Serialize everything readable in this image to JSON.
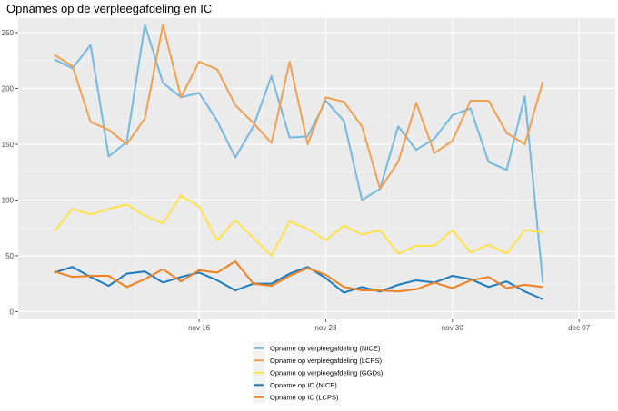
{
  "chart_data": {
    "type": "line",
    "title": "Opnames op de verpleegafdeling en IC",
    "xlabel": "",
    "ylabel": "",
    "x_start": "2020-11-08",
    "x_ticks": [
      {
        "label": "nov 16",
        "date": "2020-11-16"
      },
      {
        "label": "nov 23",
        "date": "2020-11-23"
      },
      {
        "label": "nov 30",
        "date": "2020-11-30"
      },
      {
        "label": "dec 07",
        "date": "2020-12-07"
      }
    ],
    "xlim": [
      "2020-11-06",
      "2020-12-09"
    ],
    "y_ticks": [
      0,
      50,
      100,
      150,
      200,
      250
    ],
    "ylim": [
      -7,
      263
    ],
    "grid": true,
    "legend_position": "bottom",
    "series": [
      {
        "name": "Opname op verpleegafdeling (NICE)",
        "color": "#74b9df",
        "values": [
          226,
          218,
          239,
          139,
          152,
          257,
          205,
          192,
          196,
          171,
          138,
          166,
          211,
          156,
          157,
          189,
          171,
          100,
          110,
          166,
          145,
          155,
          176,
          182,
          134,
          127,
          193,
          26
        ]
      },
      {
        "name": "Opname op verpleegafdeling (LCPS)",
        "color": "#f0a050",
        "values": [
          230,
          220,
          170,
          163,
          150,
          173,
          257,
          192,
          224,
          217,
          185,
          169,
          151,
          224,
          150,
          192,
          188,
          166,
          110,
          134,
          187,
          142,
          153,
          189,
          189,
          160,
          150,
          206
        ]
      },
      {
        "name": "Opname op verpleegafdeling (GGDs)",
        "color": "#ffe249",
        "values": [
          72,
          92,
          87,
          92,
          96,
          86,
          79,
          104,
          94,
          64,
          82,
          66,
          50,
          81,
          74,
          64,
          77,
          69,
          73,
          52,
          59,
          59,
          73,
          53,
          60,
          52,
          73,
          71
        ]
      },
      {
        "name": "Opname op IC (NICE)",
        "color": "#1a7ac0",
        "values": [
          35,
          40,
          31,
          23,
          34,
          36,
          26,
          31,
          35,
          28,
          19,
          25,
          25,
          34,
          40,
          30,
          17,
          22,
          18,
          24,
          28,
          26,
          32,
          29,
          22,
          27,
          18,
          11
        ]
      },
      {
        "name": "Opname op IC (LCPS)",
        "color": "#f08020",
        "values": [
          36,
          31,
          32,
          32,
          22,
          29,
          38,
          27,
          37,
          35,
          45,
          25,
          23,
          32,
          39,
          33,
          22,
          19,
          19,
          18,
          20,
          26,
          21,
          28,
          31,
          21,
          24,
          22
        ]
      }
    ]
  }
}
